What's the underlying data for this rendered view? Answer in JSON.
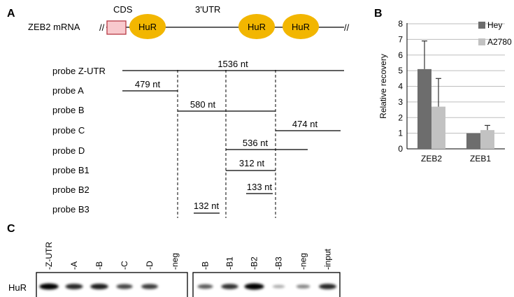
{
  "panels": {
    "a": "A",
    "b": "B",
    "c": "C"
  },
  "mrna": {
    "name": "ZEB2 mRNA",
    "cds_label": "CDS",
    "utr_label": "3'UTR",
    "break_symbol": "//",
    "hur_sites": [
      "HuR",
      "HuR",
      "HuR"
    ]
  },
  "probes": [
    {
      "label": "probe Z-UTR",
      "length": "1536 nt"
    },
    {
      "label": "probe A",
      "length": "479 nt"
    },
    {
      "label": "probe B",
      "length": "580 nt"
    },
    {
      "label": "probe C",
      "length": "474 nt"
    },
    {
      "label": "probe D",
      "length": "536 nt"
    },
    {
      "label": "probe B1",
      "length": "312 nt"
    },
    {
      "label": "probe B2",
      "length": "133 nt"
    },
    {
      "label": "probe B3",
      "length": "132 nt"
    }
  ],
  "chart_data": {
    "type": "bar",
    "categories": [
      "ZEB2",
      "ZEB1"
    ],
    "series": [
      {
        "name": "Hey",
        "color": "#6d6d6d",
        "values": [
          5.1,
          1.0
        ],
        "errors": [
          1.8,
          0.0
        ]
      },
      {
        "name": "A2780",
        "color": "#c2c2c2",
        "values": [
          2.7,
          1.2
        ],
        "errors": [
          1.8,
          0.3
        ]
      }
    ],
    "ylabel": "Relative recovery",
    "ylim": [
      0,
      8
    ],
    "yticks": [
      0,
      1,
      2,
      3,
      4,
      5,
      6,
      7,
      8
    ],
    "grid": true,
    "legend": "top-right"
  },
  "blot": {
    "row_label": "HuR",
    "left_lanes": [
      "-Z-UTR",
      "-A",
      "-B",
      "-C",
      "-D",
      "-neg"
    ],
    "right_lanes": [
      "-B",
      "-B1",
      "-B2",
      "-B3",
      "-neg",
      "-input"
    ],
    "left_intensity": [
      0.95,
      0.75,
      0.8,
      0.6,
      0.65,
      0.0
    ],
    "right_intensity": [
      0.5,
      0.7,
      1.0,
      0.12,
      0.3,
      0.75
    ]
  }
}
